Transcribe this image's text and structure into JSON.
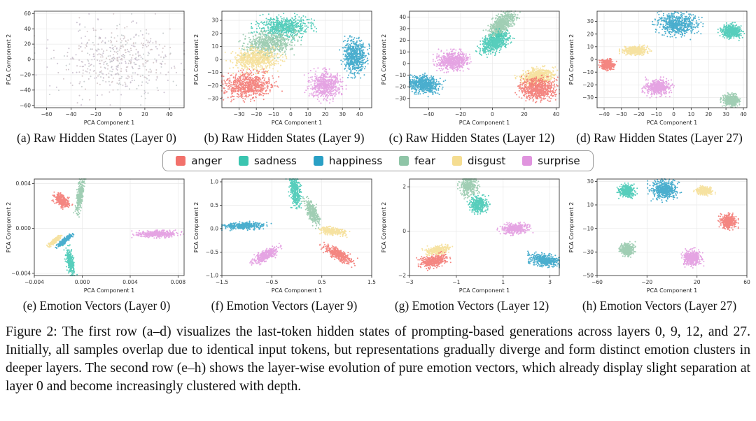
{
  "figure": {
    "caption": "Figure 2: The first row (a–d) visualizes the last-token hidden states of prompting-based generations across layers 0, 9, 12, and 27. Initially, all samples overlap due to identical input tokens, but representations gradually diverge and form distinct emotion clusters in deeper layers. The second row (e–h) shows the layer-wise evolution of pure emotion vectors, which already display slight separation at layer 0 and become increasingly clustered with depth."
  },
  "palette": {
    "anger": "#f2716b",
    "sadness": "#3ac5b0",
    "happiness": "#2aa0c5",
    "fear": "#8fc5a7",
    "disgust": "#f5dd91",
    "surprise": "#e094de",
    "mixed": [
      "#c8bdc5",
      "#bec5c7",
      "#cfc0c2",
      "#c2b6c9"
    ]
  },
  "legend": {
    "entries": [
      {
        "label": "anger",
        "color_key": "anger"
      },
      {
        "label": "sadness",
        "color_key": "sadness"
      },
      {
        "label": "happiness",
        "color_key": "happiness"
      },
      {
        "label": "fear",
        "color_key": "fear"
      },
      {
        "label": "disgust",
        "color_key": "disgust"
      },
      {
        "label": "surprise",
        "color_key": "surprise"
      }
    ]
  },
  "chart_data": [
    {
      "id": "a",
      "type": "scatter",
      "caption": "(a) Raw Hidden States (Layer 0)",
      "xlabel": "PCA Component 1",
      "ylabel": "PCA Component 2",
      "xlim": [
        -70,
        52
      ],
      "ylim": [
        -63,
        63
      ],
      "xticks": [
        -60,
        -40,
        -20,
        0,
        20,
        40
      ],
      "xtick_labels": [
        "−60",
        "−40",
        "−20",
        "0",
        "20",
        "40"
      ],
      "yticks": [
        -60,
        -40,
        -20,
        0,
        20,
        40,
        60
      ],
      "ytick_labels": [
        "−60",
        "−40",
        "−20",
        "0",
        "20",
        "40",
        "60"
      ],
      "clusters": [
        {
          "emotion": "mixed",
          "cx": -4,
          "cy": 0,
          "sx": 25,
          "sy": 22,
          "rot": 0,
          "n": 500
        }
      ]
    },
    {
      "id": "b",
      "type": "scatter",
      "caption": "(b) Raw Hidden States (Layer 9)",
      "xlabel": "PCA Component 1",
      "ylabel": "PCA Component 2",
      "xlim": [
        -40,
        47
      ],
      "ylim": [
        -37,
        37
      ],
      "xticks": [
        -30,
        -20,
        -10,
        0,
        10,
        20,
        30,
        40
      ],
      "xtick_labels": [
        "−30",
        "−20",
        "−10",
        "0",
        "10",
        "20",
        "30",
        "40"
      ],
      "yticks": [
        -30,
        -20,
        -10,
        0,
        10,
        20,
        30
      ],
      "ytick_labels": [
        "−30",
        "−20",
        "−10",
        "0",
        "10",
        "20",
        "30"
      ],
      "clusters": [
        {
          "emotion": "sadness",
          "cx": -4,
          "cy": 25,
          "sx": 7,
          "sy": 3.8,
          "rot": 0,
          "n": 650
        },
        {
          "emotion": "fear",
          "cx": -12,
          "cy": 12,
          "sx": 6.5,
          "sy": 4.2,
          "rot": 10,
          "n": 650
        },
        {
          "emotion": "disgust",
          "cx": -20,
          "cy": 0,
          "sx": 6.5,
          "sy": 4,
          "rot": 5,
          "n": 650
        },
        {
          "emotion": "anger",
          "cx": -25,
          "cy": -20,
          "sx": 7,
          "sy": 4.5,
          "rot": 10,
          "n": 700
        },
        {
          "emotion": "surprise",
          "cx": 20,
          "cy": -20,
          "sx": 4.5,
          "sy": 5,
          "rot": 0,
          "n": 600
        },
        {
          "emotion": "happiness",
          "cx": 37,
          "cy": 2,
          "sx": 3.2,
          "sy": 6,
          "rot": 0,
          "n": 600
        }
      ]
    },
    {
      "id": "c",
      "type": "scatter",
      "caption": "(c) Raw Hidden States (Layer 12)",
      "xlabel": "PCA Component 1",
      "ylabel": "PCA Component 2",
      "xlim": [
        -52,
        42
      ],
      "ylim": [
        -38,
        45
      ],
      "xticks": [
        -40,
        -20,
        0,
        20,
        40
      ],
      "xtick_labels": [
        "−40",
        "−20",
        "0",
        "20",
        "40"
      ],
      "yticks": [
        -30,
        -20,
        -10,
        0,
        10,
        20,
        30,
        40
      ],
      "ytick_labels": [
        "−30",
        "−20",
        "−10",
        "0",
        "10",
        "20",
        "30",
        "40"
      ],
      "clusters": [
        {
          "emotion": "fear",
          "cx": 6,
          "cy": 34,
          "sx": 5.5,
          "sy": 2.8,
          "rot": 55,
          "n": 650
        },
        {
          "emotion": "sadness",
          "cx": 1.5,
          "cy": 18,
          "sx": 5,
          "sy": 3,
          "rot": 45,
          "n": 650
        },
        {
          "emotion": "surprise",
          "cx": -25,
          "cy": 2,
          "sx": 4.5,
          "sy": 3.8,
          "rot": 0,
          "n": 600
        },
        {
          "emotion": "happiness",
          "cx": -43,
          "cy": -18,
          "sx": 4.5,
          "sy": 3.5,
          "rot": -15,
          "n": 600
        },
        {
          "emotion": "disgust",
          "cx": 28,
          "cy": -11,
          "sx": 5,
          "sy": 3,
          "rot": 10,
          "n": 600
        },
        {
          "emotion": "anger",
          "cx": 29,
          "cy": -22,
          "sx": 5.5,
          "sy": 4.5,
          "rot": -10,
          "n": 700
        }
      ]
    },
    {
      "id": "d",
      "type": "scatter",
      "caption": "(d) Raw Hidden States (Layer 27)",
      "xlabel": "PCA Component 1",
      "ylabel": "PCA Component 2",
      "xlim": [
        -44,
        42
      ],
      "ylim": [
        -38,
        38
      ],
      "xticks": [
        -40,
        -30,
        -20,
        -10,
        0,
        10,
        20,
        30,
        40
      ],
      "xtick_labels": [
        "−40",
        "−30",
        "−20",
        "−10",
        "0",
        "10",
        "20",
        "30",
        "40"
      ],
      "yticks": [
        -30,
        -20,
        -10,
        0,
        10,
        20,
        30
      ],
      "ytick_labels": [
        "−30",
        "−20",
        "−10",
        "0",
        "10",
        "20",
        "30"
      ],
      "clusters": [
        {
          "emotion": "happiness",
          "cx": 2,
          "cy": 28,
          "sx": 5.5,
          "sy": 4,
          "rot": -10,
          "n": 600
        },
        {
          "emotion": "sadness",
          "cx": 33,
          "cy": 22,
          "sx": 2.8,
          "sy": 2.6,
          "rot": 0,
          "n": 450
        },
        {
          "emotion": "disgust",
          "cx": -22,
          "cy": 7,
          "sx": 3.4,
          "sy": 1.6,
          "rot": 0,
          "n": 450
        },
        {
          "emotion": "anger",
          "cx": -38,
          "cy": -4,
          "sx": 1.9,
          "sy": 1.9,
          "rot": 0,
          "n": 400
        },
        {
          "emotion": "surprise",
          "cx": -9,
          "cy": -22,
          "sx": 3.4,
          "sy": 3,
          "rot": 0,
          "n": 500
        },
        {
          "emotion": "fear",
          "cx": 33,
          "cy": -32,
          "sx": 2.3,
          "sy": 2.1,
          "rot": 0,
          "n": 400
        }
      ]
    },
    {
      "id": "e",
      "type": "scatter",
      "caption": "(e) Emotion Vectors (Layer 0)",
      "xlabel": "PCA Component 1",
      "ylabel": "PCA Component 2",
      "xlim": [
        -0.004,
        0.0085
      ],
      "ylim": [
        -0.0042,
        0.0044
      ],
      "xticks": [
        -0.004,
        0,
        0.004,
        0.008
      ],
      "xtick_labels": [
        "−0.004",
        "0.000",
        "0.004",
        "0.008"
      ],
      "yticks": [
        -0.004,
        0,
        0.004
      ],
      "ytick_labels": [
        "−0.004",
        "0.000",
        "0.004"
      ],
      "clusters": [
        {
          "emotion": "fear",
          "cx": -0.0002,
          "cy": 0.0029,
          "sx": 0.00012,
          "sy": 0.0007,
          "rot": -8,
          "n": 320
        },
        {
          "emotion": "anger",
          "cx": -0.0017,
          "cy": 0.0025,
          "sx": 0.00035,
          "sy": 0.00022,
          "rot": -35,
          "n": 320
        },
        {
          "emotion": "disgust",
          "cx": -0.0023,
          "cy": -0.0011,
          "sx": 0.00028,
          "sy": 8e-05,
          "rot": 40,
          "n": 260
        },
        {
          "emotion": "happiness",
          "cx": -0.0015,
          "cy": -0.0011,
          "sx": 0.00035,
          "sy": 9e-05,
          "rot": 40,
          "n": 320
        },
        {
          "emotion": "sadness",
          "cx": -0.001,
          "cy": -0.003,
          "sx": 0.00015,
          "sy": 0.0006,
          "rot": 10,
          "n": 320
        },
        {
          "emotion": "surprise",
          "cx": 0.0063,
          "cy": -0.0005,
          "sx": 0.0008,
          "sy": 0.00014,
          "rot": 0,
          "n": 420
        }
      ]
    },
    {
      "id": "f",
      "type": "scatter",
      "caption": "(f) Emotion Vectors (Layer 9)",
      "xlabel": "PCA Component 1",
      "ylabel": "PCA Component 2",
      "xlim": [
        -1.5,
        1.5
      ],
      "ylim": [
        -1.0,
        1.06
      ],
      "xticks": [
        -1.5,
        -0.5,
        0.5,
        1.5
      ],
      "xtick_labels": [
        "−1.5",
        "−0.5",
        "0.5",
        "1.5"
      ],
      "yticks": [
        -1,
        -0.5,
        0,
        0.5,
        1
      ],
      "ytick_labels": [
        "−1.0",
        "−0.5",
        "0.0",
        "0.5",
        "1.0"
      ],
      "clusters": [
        {
          "emotion": "sadness",
          "cx": -0.03,
          "cy": 0.8,
          "sx": 0.05,
          "sy": 0.17,
          "rot": 8,
          "n": 360
        },
        {
          "emotion": "fear",
          "cx": 0.32,
          "cy": 0.35,
          "sx": 0.05,
          "sy": 0.13,
          "rot": 25,
          "n": 320
        },
        {
          "emotion": "happiness",
          "cx": -1.05,
          "cy": 0.06,
          "sx": 0.2,
          "sy": 0.035,
          "rot": 2,
          "n": 420
        },
        {
          "emotion": "disgust",
          "cx": 0.72,
          "cy": -0.05,
          "sx": 0.13,
          "sy": 0.035,
          "rot": -8,
          "n": 320
        },
        {
          "emotion": "anger",
          "cx": 0.83,
          "cy": -0.55,
          "sx": 0.16,
          "sy": 0.05,
          "rot": -30,
          "n": 380
        },
        {
          "emotion": "surprise",
          "cx": -0.63,
          "cy": -0.58,
          "sx": 0.14,
          "sy": 0.05,
          "rot": 30,
          "n": 380
        }
      ]
    },
    {
      "id": "g",
      "type": "scatter",
      "caption": "(g) Emotion Vectors (Layer 12)",
      "xlabel": "PCA Component 1",
      "ylabel": "PCA Component 2",
      "xlim": [
        -3,
        3.4
      ],
      "ylim": [
        -2,
        2.35
      ],
      "xticks": [
        -3,
        -1,
        1,
        3
      ],
      "xtick_labels": [
        "−3",
        "−1",
        "1",
        "3"
      ],
      "yticks": [
        -2,
        0,
        2
      ],
      "ytick_labels": [
        "−2",
        "0",
        "2"
      ],
      "clusters": [
        {
          "emotion": "fear",
          "cx": -0.45,
          "cy": 2.05,
          "sx": 0.18,
          "sy": 0.22,
          "rot": 0,
          "n": 360
        },
        {
          "emotion": "sadness",
          "cx": -0.05,
          "cy": 1.2,
          "sx": 0.18,
          "sy": 0.16,
          "rot": 0,
          "n": 360
        },
        {
          "emotion": "surprise",
          "cx": 1.5,
          "cy": 0.12,
          "sx": 0.28,
          "sy": 0.11,
          "rot": 5,
          "n": 360
        },
        {
          "emotion": "disgust",
          "cx": -1.8,
          "cy": -0.85,
          "sx": 0.24,
          "sy": 0.09,
          "rot": 8,
          "n": 320
        },
        {
          "emotion": "anger",
          "cx": -1.95,
          "cy": -1.35,
          "sx": 0.26,
          "sy": 0.13,
          "rot": 12,
          "n": 420
        },
        {
          "emotion": "happiness",
          "cx": 2.75,
          "cy": -1.3,
          "sx": 0.35,
          "sy": 0.12,
          "rot": -10,
          "n": 420
        }
      ]
    },
    {
      "id": "h",
      "type": "scatter",
      "caption": "(h) Emotion Vectors (Layer 27)",
      "xlabel": "PCA Component 1",
      "ylabel": "PCA Component 2",
      "xlim": [
        -60,
        60
      ],
      "ylim": [
        -50,
        32
      ],
      "xticks": [
        -60,
        -20,
        20,
        60
      ],
      "xtick_labels": [
        "−60",
        "−20",
        "20",
        "60"
      ],
      "yticks": [
        -50,
        -30,
        -10,
        10,
        30
      ],
      "ytick_labels": [
        "−50",
        "−30",
        "−10",
        "10",
        "30"
      ],
      "clusters": [
        {
          "emotion": "sadness",
          "cx": -36,
          "cy": 22,
          "sx": 3,
          "sy": 2.4,
          "rot": 0,
          "n": 360
        },
        {
          "emotion": "happiness",
          "cx": -6,
          "cy": 23,
          "sx": 5,
          "sy": 4,
          "rot": 0,
          "n": 520
        },
        {
          "emotion": "disgust",
          "cx": 26,
          "cy": 22,
          "sx": 3.2,
          "sy": 1.6,
          "rot": 0,
          "n": 320
        },
        {
          "emotion": "anger",
          "cx": 45,
          "cy": -4,
          "sx": 3,
          "sy": 2.8,
          "rot": 0,
          "n": 420
        },
        {
          "emotion": "fear",
          "cx": -36,
          "cy": -28,
          "sx": 2.5,
          "sy": 2.5,
          "rot": 0,
          "n": 320
        },
        {
          "emotion": "surprise",
          "cx": 16,
          "cy": -35,
          "sx": 3.5,
          "sy": 3.2,
          "rot": 0,
          "n": 420
        }
      ]
    }
  ]
}
